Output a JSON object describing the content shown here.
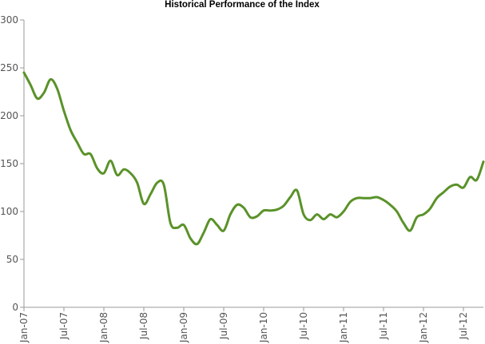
{
  "chart_data": {
    "type": "line",
    "title": "Historical Performance of the Index",
    "xlabel": "",
    "ylabel": "",
    "ylim": [
      0,
      300
    ],
    "xlim": [
      "2007-01",
      "2012-10"
    ],
    "y_ticks": [
      "0",
      "50",
      "100",
      "150",
      "200",
      "250",
      "300"
    ],
    "x_ticks": [
      "Jan-07",
      "Jul-07",
      "Jan-08",
      "Jul-08",
      "Jan-09",
      "Jul-09",
      "Jan-10",
      "Jul-10",
      "Jan-11",
      "Jul-11",
      "Jan-12",
      "Jul-12"
    ],
    "grid": false,
    "legend": "none",
    "line_color": "#5a9229",
    "series": [
      {
        "x": [
          "2007-01",
          "2007-02",
          "2007-03",
          "2007-04",
          "2007-05",
          "2007-06",
          "2007-07",
          "2007-08",
          "2007-09",
          "2007-10",
          "2007-11",
          "2007-12",
          "2008-01",
          "2008-02",
          "2008-03",
          "2008-04",
          "2008-05",
          "2008-06",
          "2008-07",
          "2008-08",
          "2008-09",
          "2008-10",
          "2008-11",
          "2008-12",
          "2009-01",
          "2009-02",
          "2009-03",
          "2009-04",
          "2009-05",
          "2009-06",
          "2009-07",
          "2009-08",
          "2009-09",
          "2009-10",
          "2009-11",
          "2009-12",
          "2010-01",
          "2010-02",
          "2010-03",
          "2010-04",
          "2010-05",
          "2010-06",
          "2010-07",
          "2010-08",
          "2010-09",
          "2010-10",
          "2010-11",
          "2010-12",
          "2011-01",
          "2011-02",
          "2011-03",
          "2011-04",
          "2011-05",
          "2011-06",
          "2011-07",
          "2011-08",
          "2011-09",
          "2011-10",
          "2011-11",
          "2011-12",
          "2012-01",
          "2012-02",
          "2012-03",
          "2012-04",
          "2012-05",
          "2012-06",
          "2012-07",
          "2012-08",
          "2012-09",
          "2012-10"
        ],
        "y": [
          245,
          232,
          218,
          224,
          238,
          228,
          205,
          185,
          172,
          160,
          160,
          145,
          140,
          153,
          138,
          144,
          140,
          130,
          108,
          118,
          130,
          128,
          88,
          83,
          86,
          72,
          66,
          78,
          92,
          86,
          80,
          97,
          107,
          104,
          94,
          95,
          101,
          101,
          102,
          106,
          115,
          122,
          97,
          91,
          97,
          92,
          97,
          94,
          100,
          110,
          114,
          114,
          114,
          115,
          112,
          107,
          100,
          88,
          80,
          94,
          97,
          103,
          114,
          120,
          126,
          128,
          125,
          136,
          133,
          152
        ]
      }
    ]
  }
}
